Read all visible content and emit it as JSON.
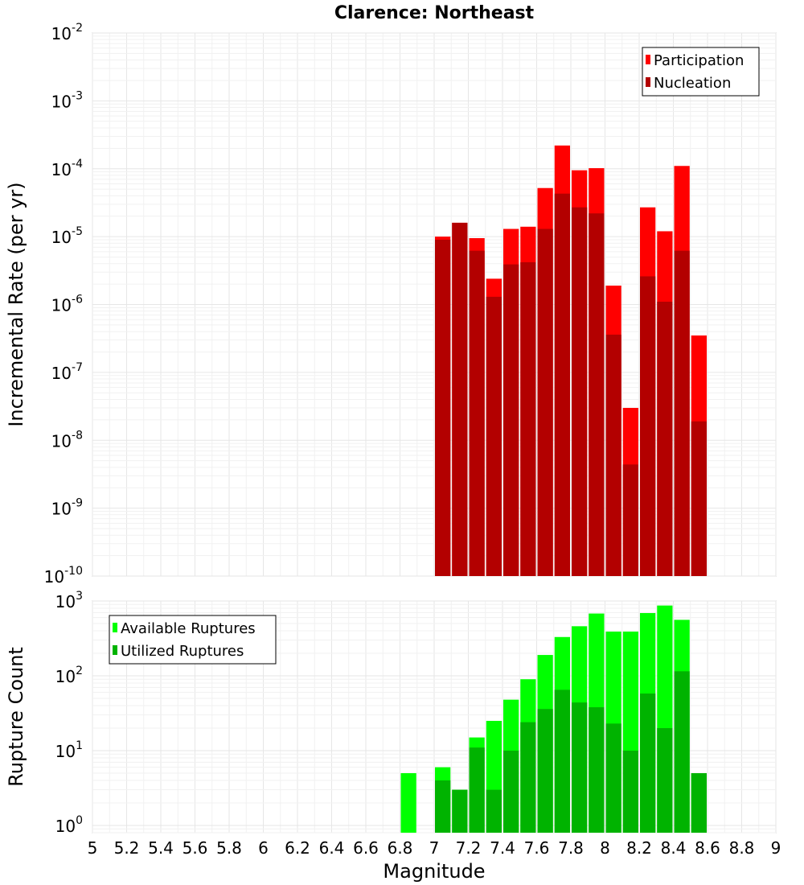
{
  "chart_data": [
    {
      "type": "bar",
      "title": "Clarence: Northeast",
      "xlabel": "",
      "ylabel": "Incremental Rate (per yr)",
      "yscale": "log",
      "ylim": [
        1e-10,
        0.01
      ],
      "xlim": [
        5,
        9
      ],
      "y_tick_exponents": [
        "-2",
        "-3",
        "-4",
        "-5",
        "-6",
        "-7",
        "-8",
        "-9",
        "-10"
      ],
      "legend_position": "top-right",
      "x": [
        7.05,
        7.15,
        7.25,
        7.35,
        7.45,
        7.55,
        7.65,
        7.75,
        7.85,
        7.95,
        8.05,
        8.15,
        8.25,
        8.35,
        8.45,
        8.55
      ],
      "series": [
        {
          "name": "Participation",
          "color": "#ff0000",
          "values": [
            1e-05,
            1.6e-05,
            9.5e-06,
            2.4e-06,
            1.3e-05,
            1.4e-05,
            5.2e-05,
            0.00022,
            9.5e-05,
            0.000102,
            1.9e-06,
            3e-08,
            2.7e-05,
            1.2e-05,
            0.00011,
            3.5e-07
          ]
        },
        {
          "name": "Nucleation",
          "color": "#b30000",
          "values": [
            9e-06,
            1.6e-05,
            6.2e-06,
            1.3e-06,
            3.9e-06,
            4.2e-06,
            1.3e-05,
            4.3e-05,
            2.7e-05,
            2.2e-05,
            3.6e-07,
            4.4e-09,
            2.6e-06,
            1.1e-06,
            6.2e-06,
            1.9e-08
          ]
        }
      ]
    },
    {
      "type": "bar",
      "title": "",
      "xlabel": "Magnitude",
      "ylabel": "Rupture Count",
      "yscale": "log",
      "ylim": [
        0.8,
        1000
      ],
      "xlim": [
        5,
        9
      ],
      "y_tick_exponents": [
        "3",
        "2",
        "1",
        "0"
      ],
      "x_tick_labels": [
        "5",
        "5.2",
        "5.4",
        "5.6",
        "5.8",
        "6",
        "6.2",
        "6.4",
        "6.6",
        "6.8",
        "7",
        "7.2",
        "7.4",
        "7.6",
        "7.8",
        "8",
        "8.2",
        "8.4",
        "8.6",
        "8.8",
        "9"
      ],
      "legend_position": "top-left",
      "x": [
        6.85,
        7.05,
        7.15,
        7.25,
        7.35,
        7.45,
        7.55,
        7.65,
        7.75,
        7.85,
        7.95,
        8.05,
        8.15,
        8.25,
        8.35,
        8.45,
        8.55
      ],
      "series": [
        {
          "name": "Available Ruptures",
          "color": "#00ff00",
          "values": [
            5,
            6,
            3,
            15,
            25,
            48,
            90,
            190,
            330,
            460,
            680,
            390,
            390,
            690,
            870,
            560,
            5
          ]
        },
        {
          "name": "Utilized Ruptures",
          "color": "#00b300",
          "values": [
            0,
            4,
            3,
            11,
            3,
            10,
            24,
            36,
            65,
            44,
            38,
            23,
            10,
            58,
            20,
            115,
            5
          ]
        }
      ]
    }
  ]
}
